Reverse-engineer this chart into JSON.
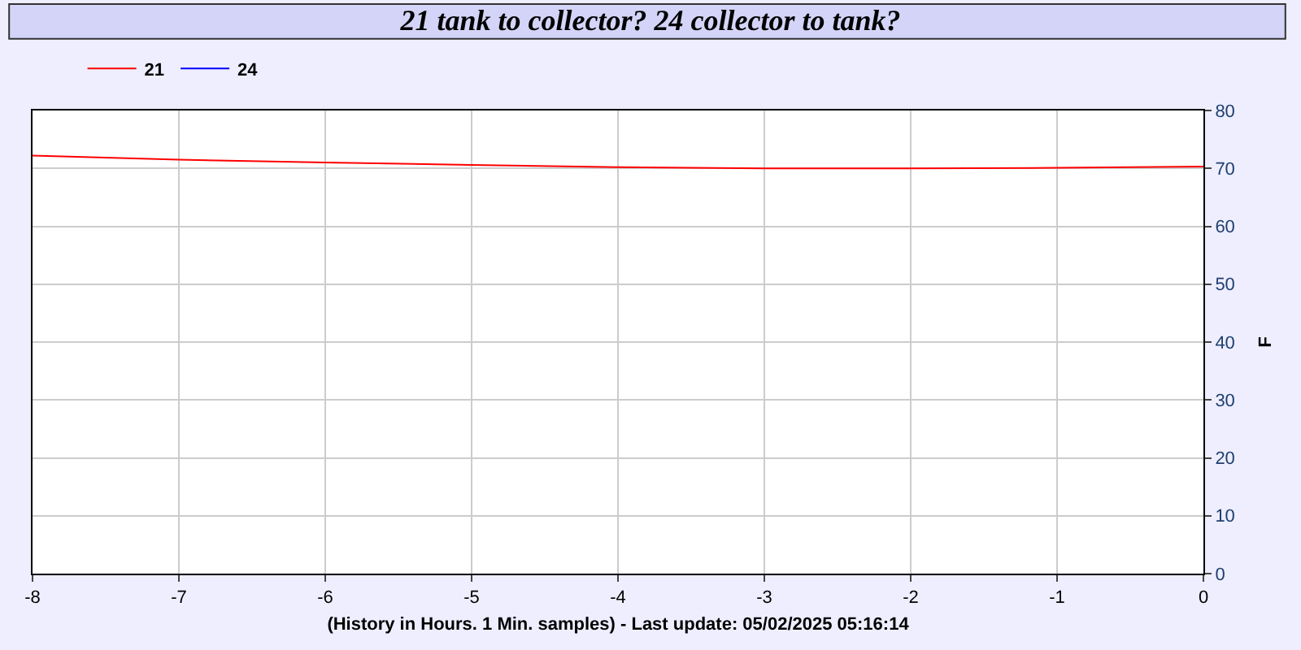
{
  "chart_data": {
    "type": "line",
    "title": "21 tank to collector? 24 collector to tank?",
    "xlabel": "(History in Hours. 1 Min. samples) - Last update: 05/02/2025 05:16:14",
    "ylabel": "F",
    "x": [
      -8,
      -7,
      -6,
      -5,
      -4,
      -3,
      -2,
      -1,
      0
    ],
    "series": [
      {
        "name": "21",
        "color": "#ff0000",
        "values": [
          72.2,
          71.5,
          71.0,
          70.6,
          70.2,
          70.0,
          70.0,
          70.1,
          70.3
        ]
      },
      {
        "name": "24",
        "color": "#0000ff",
        "values": [
          null,
          null,
          null,
          null,
          null,
          null,
          null,
          null,
          null
        ]
      }
    ],
    "xlim": [
      -8,
      0
    ],
    "xticks": [
      -8,
      -7,
      -6,
      -5,
      -4,
      -3,
      -2,
      -1,
      0
    ],
    "ylim": [
      0,
      80
    ],
    "yticks": [
      0,
      10,
      20,
      30,
      40,
      50,
      60,
      70,
      80
    ],
    "grid": true,
    "legend": "top left"
  }
}
